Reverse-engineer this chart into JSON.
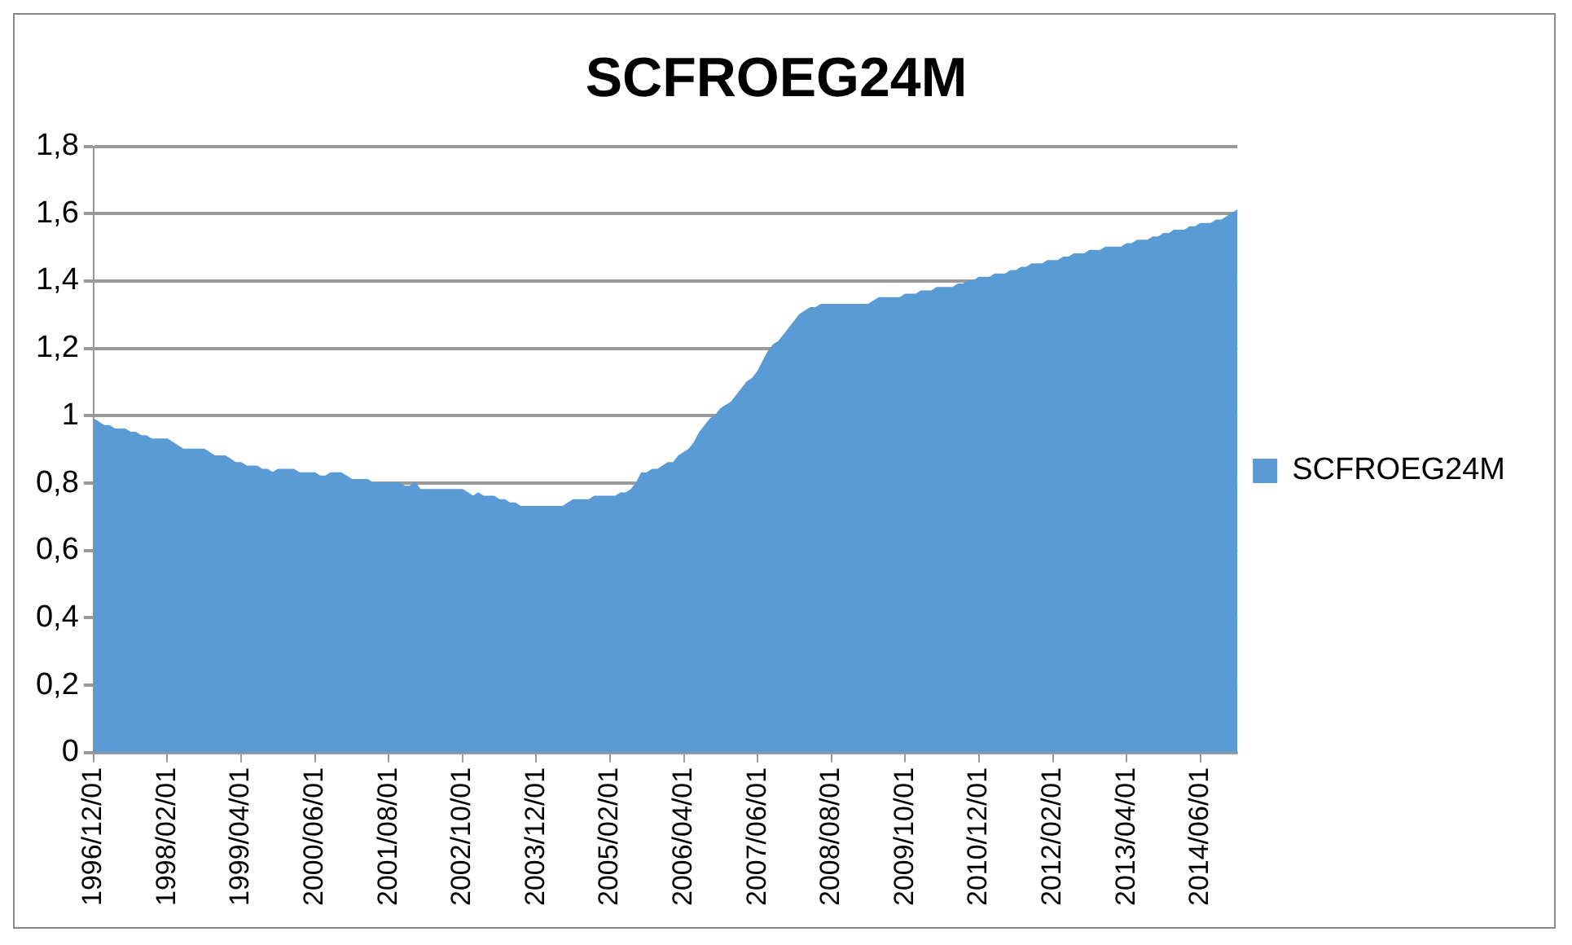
{
  "chart_data": {
    "type": "area",
    "title": "SCFROEG24M",
    "categories": [
      "1996/12/01",
      null,
      null,
      null,
      null,
      null,
      null,
      null,
      null,
      null,
      null,
      null,
      null,
      null,
      "1998/02/01",
      null,
      null,
      null,
      null,
      null,
      null,
      null,
      null,
      null,
      null,
      null,
      null,
      null,
      "1999/04/01",
      null,
      null,
      null,
      null,
      null,
      null,
      null,
      null,
      null,
      null,
      null,
      null,
      null,
      "2000/06/01",
      null,
      null,
      null,
      null,
      null,
      null,
      null,
      null,
      null,
      null,
      null,
      null,
      null,
      "2001/08/01",
      null,
      null,
      null,
      null,
      null,
      null,
      null,
      null,
      null,
      null,
      null,
      null,
      null,
      "2002/10/01",
      null,
      null,
      null,
      null,
      null,
      null,
      null,
      null,
      null,
      null,
      null,
      null,
      null,
      "2003/12/01",
      null,
      null,
      null,
      null,
      null,
      null,
      null,
      null,
      null,
      null,
      null,
      null,
      null,
      "2005/02/01",
      null,
      null,
      null,
      null,
      null,
      null,
      null,
      null,
      null,
      null,
      null,
      null,
      null,
      "2006/04/01",
      null,
      null,
      null,
      null,
      null,
      null,
      null,
      null,
      null,
      null,
      null,
      null,
      null,
      "2007/06/01",
      null,
      null,
      null,
      null,
      null,
      null,
      null,
      null,
      null,
      null,
      null,
      null,
      null,
      "2008/08/01",
      null,
      null,
      null,
      null,
      null,
      null,
      null,
      null,
      null,
      null,
      null,
      null,
      null,
      "2009/10/01",
      null,
      null,
      null,
      null,
      null,
      null,
      null,
      null,
      null,
      null,
      null,
      null,
      null,
      "2010/12/01",
      null,
      null,
      null,
      null,
      null,
      null,
      null,
      null,
      null,
      null,
      null,
      null,
      null,
      "2012/02/01",
      null,
      null,
      null,
      null,
      null,
      null,
      null,
      null,
      null,
      null,
      null,
      null,
      null,
      "2013/04/01",
      null,
      null,
      null,
      null,
      null,
      null,
      null,
      null,
      null,
      null,
      null,
      null,
      null,
      "2014/06/01",
      null,
      null,
      null,
      null,
      null,
      null,
      null
    ],
    "series": [
      {
        "name": "SCFROEG24M",
        "color": "#5b9bd5",
        "values": [
          0.99,
          0.98,
          0.97,
          0.97,
          0.96,
          0.96,
          0.96,
          0.95,
          0.95,
          0.94,
          0.94,
          0.93,
          0.93,
          0.93,
          0.93,
          0.92,
          0.91,
          0.9,
          0.9,
          0.9,
          0.9,
          0.9,
          0.89,
          0.88,
          0.88,
          0.88,
          0.87,
          0.86,
          0.86,
          0.85,
          0.85,
          0.85,
          0.84,
          0.84,
          0.83,
          0.84,
          0.84,
          0.84,
          0.84,
          0.83,
          0.83,
          0.83,
          0.83,
          0.82,
          0.82,
          0.83,
          0.83,
          0.83,
          0.82,
          0.81,
          0.81,
          0.81,
          0.81,
          0.8,
          0.8,
          0.8,
          0.8,
          0.8,
          0.8,
          0.79,
          0.79,
          0.8,
          0.78,
          0.78,
          0.78,
          0.78,
          0.78,
          0.78,
          0.78,
          0.78,
          0.78,
          0.77,
          0.76,
          0.77,
          0.76,
          0.76,
          0.76,
          0.75,
          0.75,
          0.74,
          0.74,
          0.73,
          0.73,
          0.73,
          0.73,
          0.73,
          0.73,
          0.73,
          0.73,
          0.73,
          0.74,
          0.75,
          0.75,
          0.75,
          0.75,
          0.76,
          0.76,
          0.76,
          0.76,
          0.76,
          0.77,
          0.77,
          0.78,
          0.8,
          0.83,
          0.83,
          0.84,
          0.84,
          0.85,
          0.86,
          0.86,
          0.88,
          0.89,
          0.9,
          0.92,
          0.95,
          0.97,
          0.99,
          1.0,
          1.02,
          1.03,
          1.04,
          1.06,
          1.08,
          1.1,
          1.11,
          1.13,
          1.16,
          1.19,
          1.21,
          1.22,
          1.24,
          1.26,
          1.28,
          1.3,
          1.31,
          1.32,
          1.32,
          1.33,
          1.33,
          1.33,
          1.33,
          1.33,
          1.33,
          1.33,
          1.33,
          1.33,
          1.33,
          1.34,
          1.35,
          1.35,
          1.35,
          1.35,
          1.35,
          1.36,
          1.36,
          1.36,
          1.37,
          1.37,
          1.37,
          1.38,
          1.38,
          1.38,
          1.38,
          1.39,
          1.39,
          1.4,
          1.4,
          1.41,
          1.41,
          1.41,
          1.42,
          1.42,
          1.42,
          1.43,
          1.43,
          1.44,
          1.44,
          1.45,
          1.45,
          1.45,
          1.46,
          1.46,
          1.46,
          1.47,
          1.47,
          1.48,
          1.48,
          1.48,
          1.49,
          1.49,
          1.49,
          1.5,
          1.5,
          1.5,
          1.5,
          1.51,
          1.51,
          1.52,
          1.52,
          1.52,
          1.53,
          1.53,
          1.54,
          1.54,
          1.55,
          1.55,
          1.55,
          1.56,
          1.56,
          1.57,
          1.57,
          1.57,
          1.58,
          1.58,
          1.59,
          1.6,
          1.61
        ]
      }
    ],
    "ylim": [
      0,
      1.8
    ],
    "yticks": [
      0,
      {
        "value": 0.2,
        "label": "0,2"
      },
      {
        "value": 0.4,
        "label": "0,4"
      },
      {
        "value": 0.6,
        "label": "0,6"
      },
      {
        "value": 0.8,
        "label": "0,8"
      },
      1,
      {
        "value": 1.2,
        "label": "1,2"
      },
      {
        "value": 1.4,
        "label": "1,4"
      },
      {
        "value": 1.6,
        "label": "1,6"
      },
      {
        "value": 1.8,
        "label": "1,8"
      }
    ],
    "grid": "y",
    "legend": "right"
  }
}
